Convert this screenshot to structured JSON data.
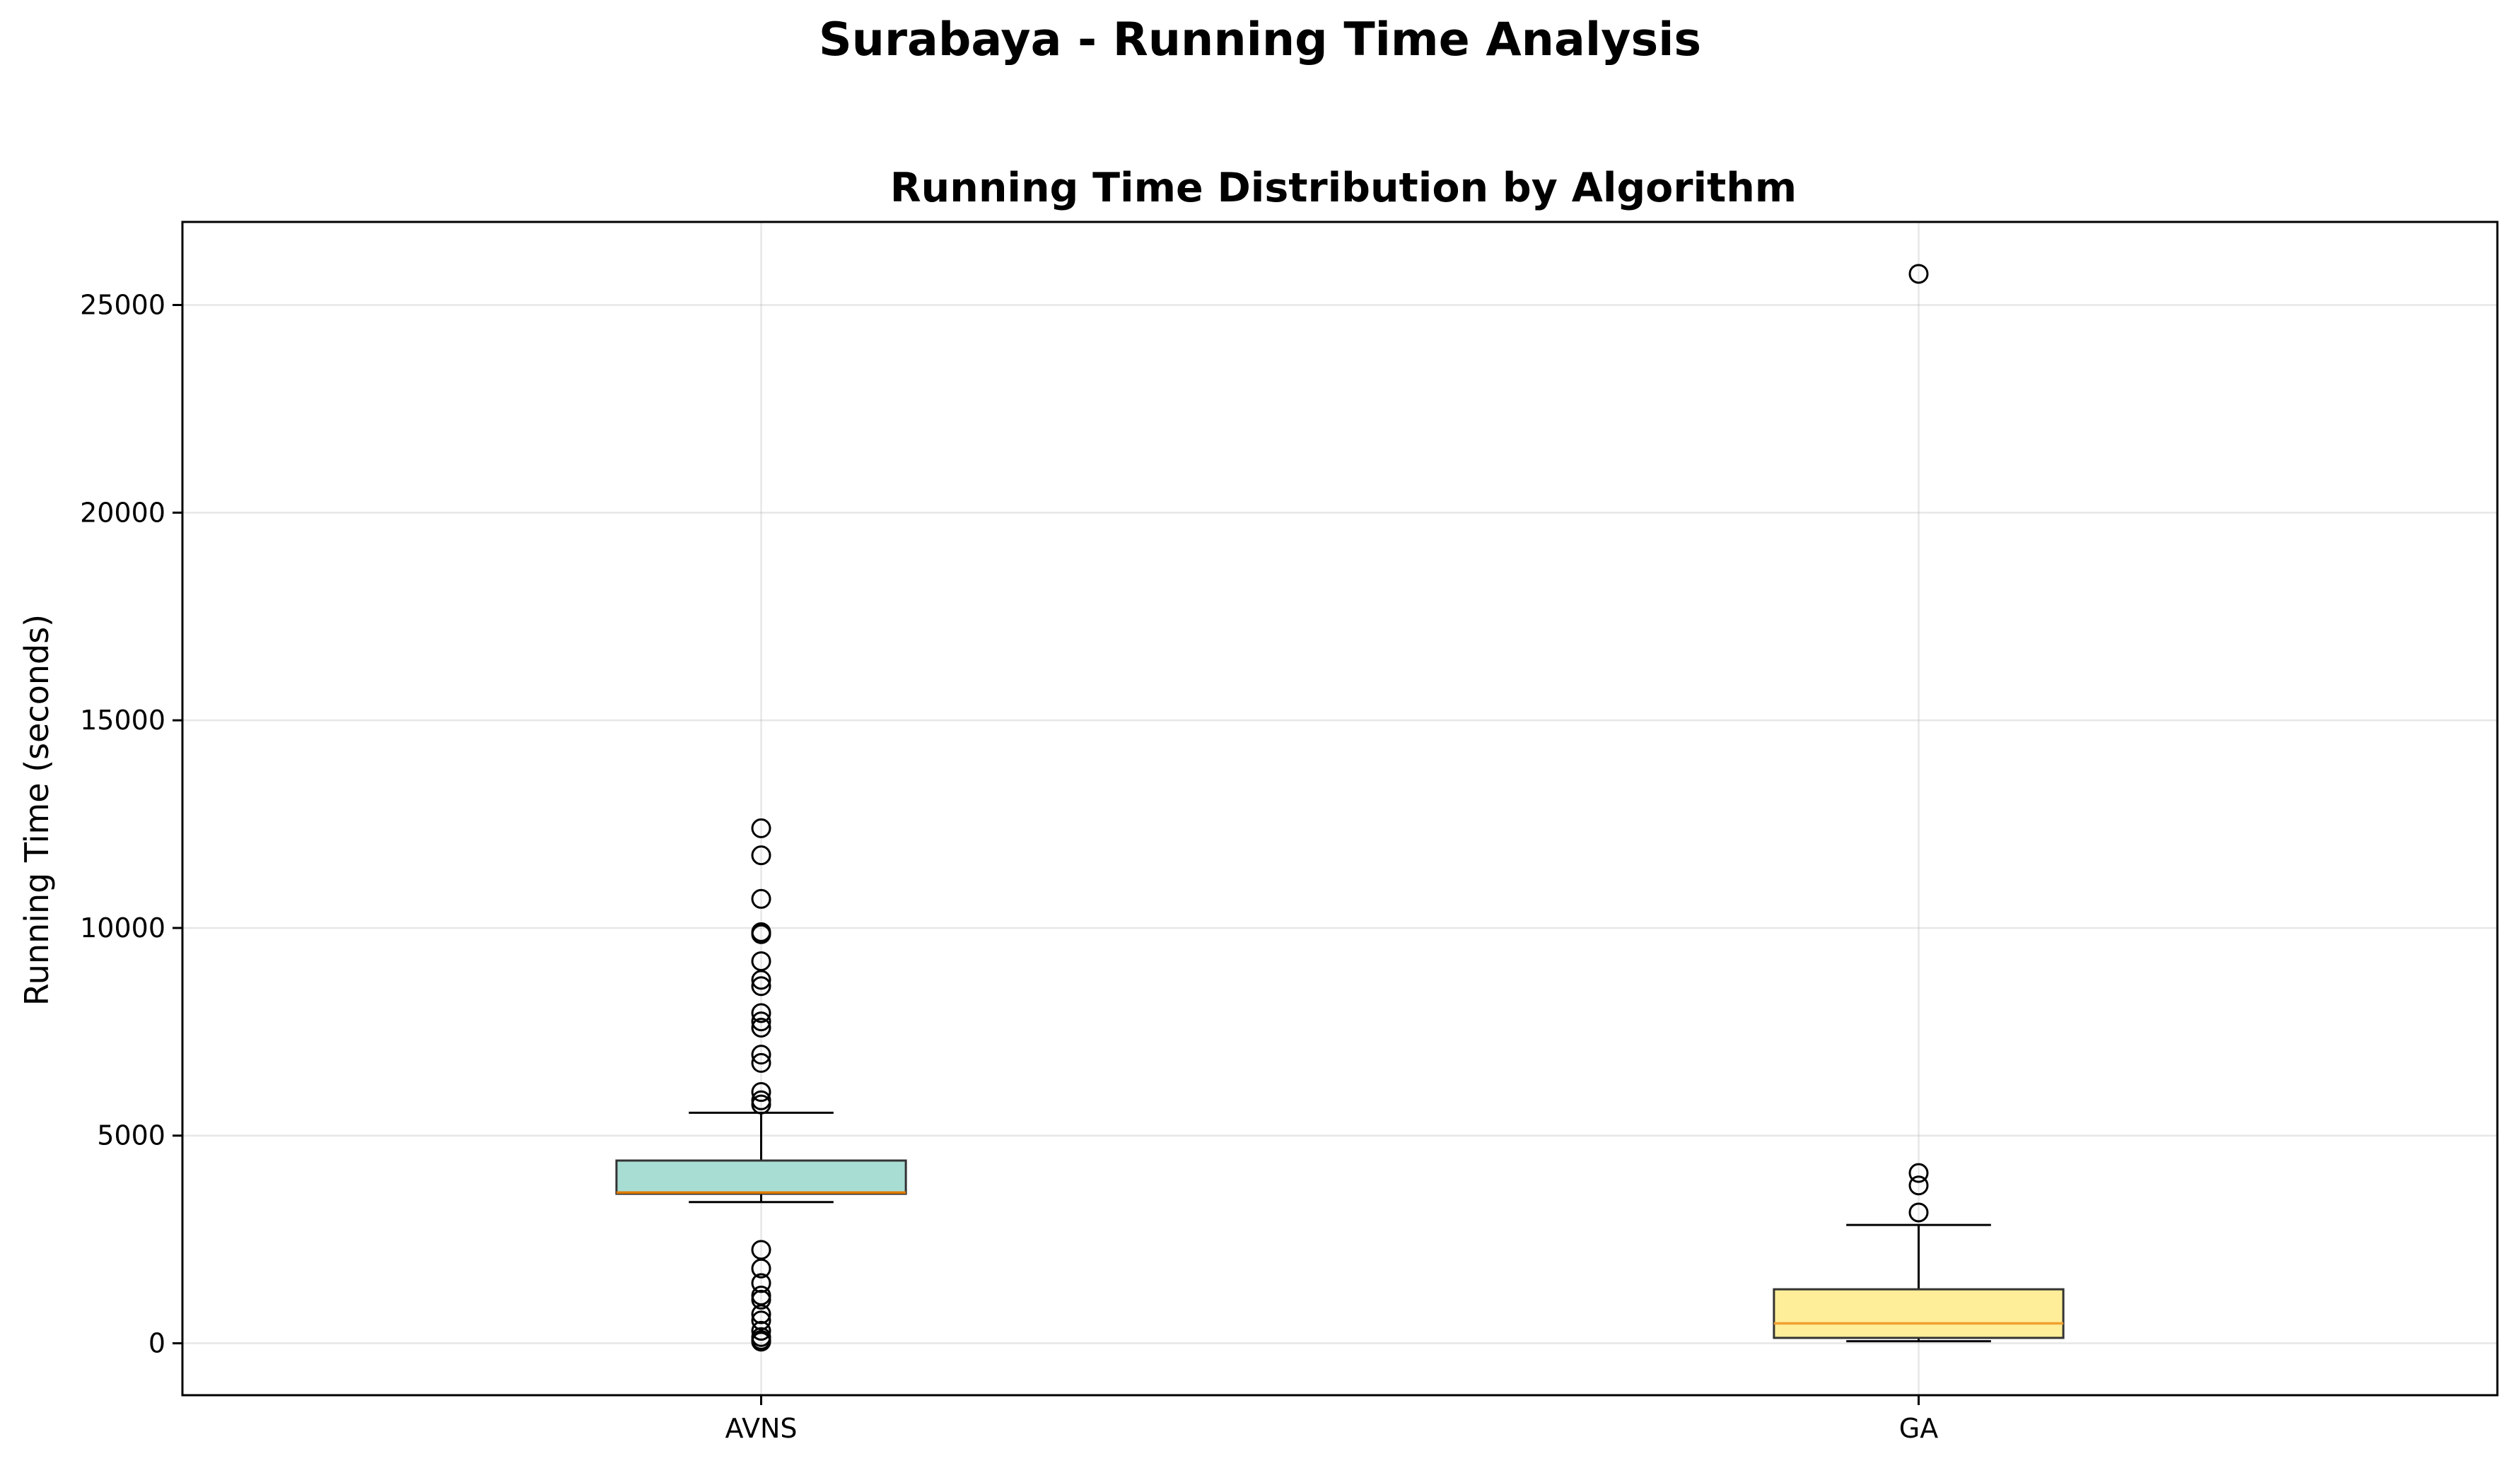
{
  "figure": {
    "suptitle": "Surabaya - Running Time Analysis"
  },
  "chart_data": {
    "type": "boxplot",
    "title": "Running Time Distribution by Algorithm",
    "xlabel": "",
    "ylabel": "Running Time (seconds)",
    "ylim": [
      -1250,
      27000
    ],
    "yticks": [
      0,
      5000,
      10000,
      15000,
      20000,
      25000
    ],
    "grid": true,
    "categories": [
      "AVNS",
      "GA"
    ],
    "series": [
      {
        "category": "AVNS",
        "color": "#a8ddd4",
        "median_color": "#e07b00",
        "whisker_low": 3400,
        "q1": 3600,
        "median": 3630,
        "q3": 4400,
        "whisker_high": 5550,
        "outliers": [
          12400,
          11750,
          10700,
          9900,
          9850,
          9200,
          8750,
          8600,
          7950,
          7750,
          7600,
          6950,
          6750,
          6050,
          5850,
          5750,
          2250,
          1800,
          1450,
          1150,
          1050,
          700,
          550,
          300,
          150,
          80,
          40
        ]
      },
      {
        "category": "GA",
        "color": "#ffee99",
        "median_color": "#f0a030",
        "whisker_low": 50,
        "q1": 130,
        "median": 480,
        "q3": 1300,
        "whisker_high": 2850,
        "outliers": [
          25750,
          4100,
          3800,
          3150
        ]
      }
    ]
  }
}
